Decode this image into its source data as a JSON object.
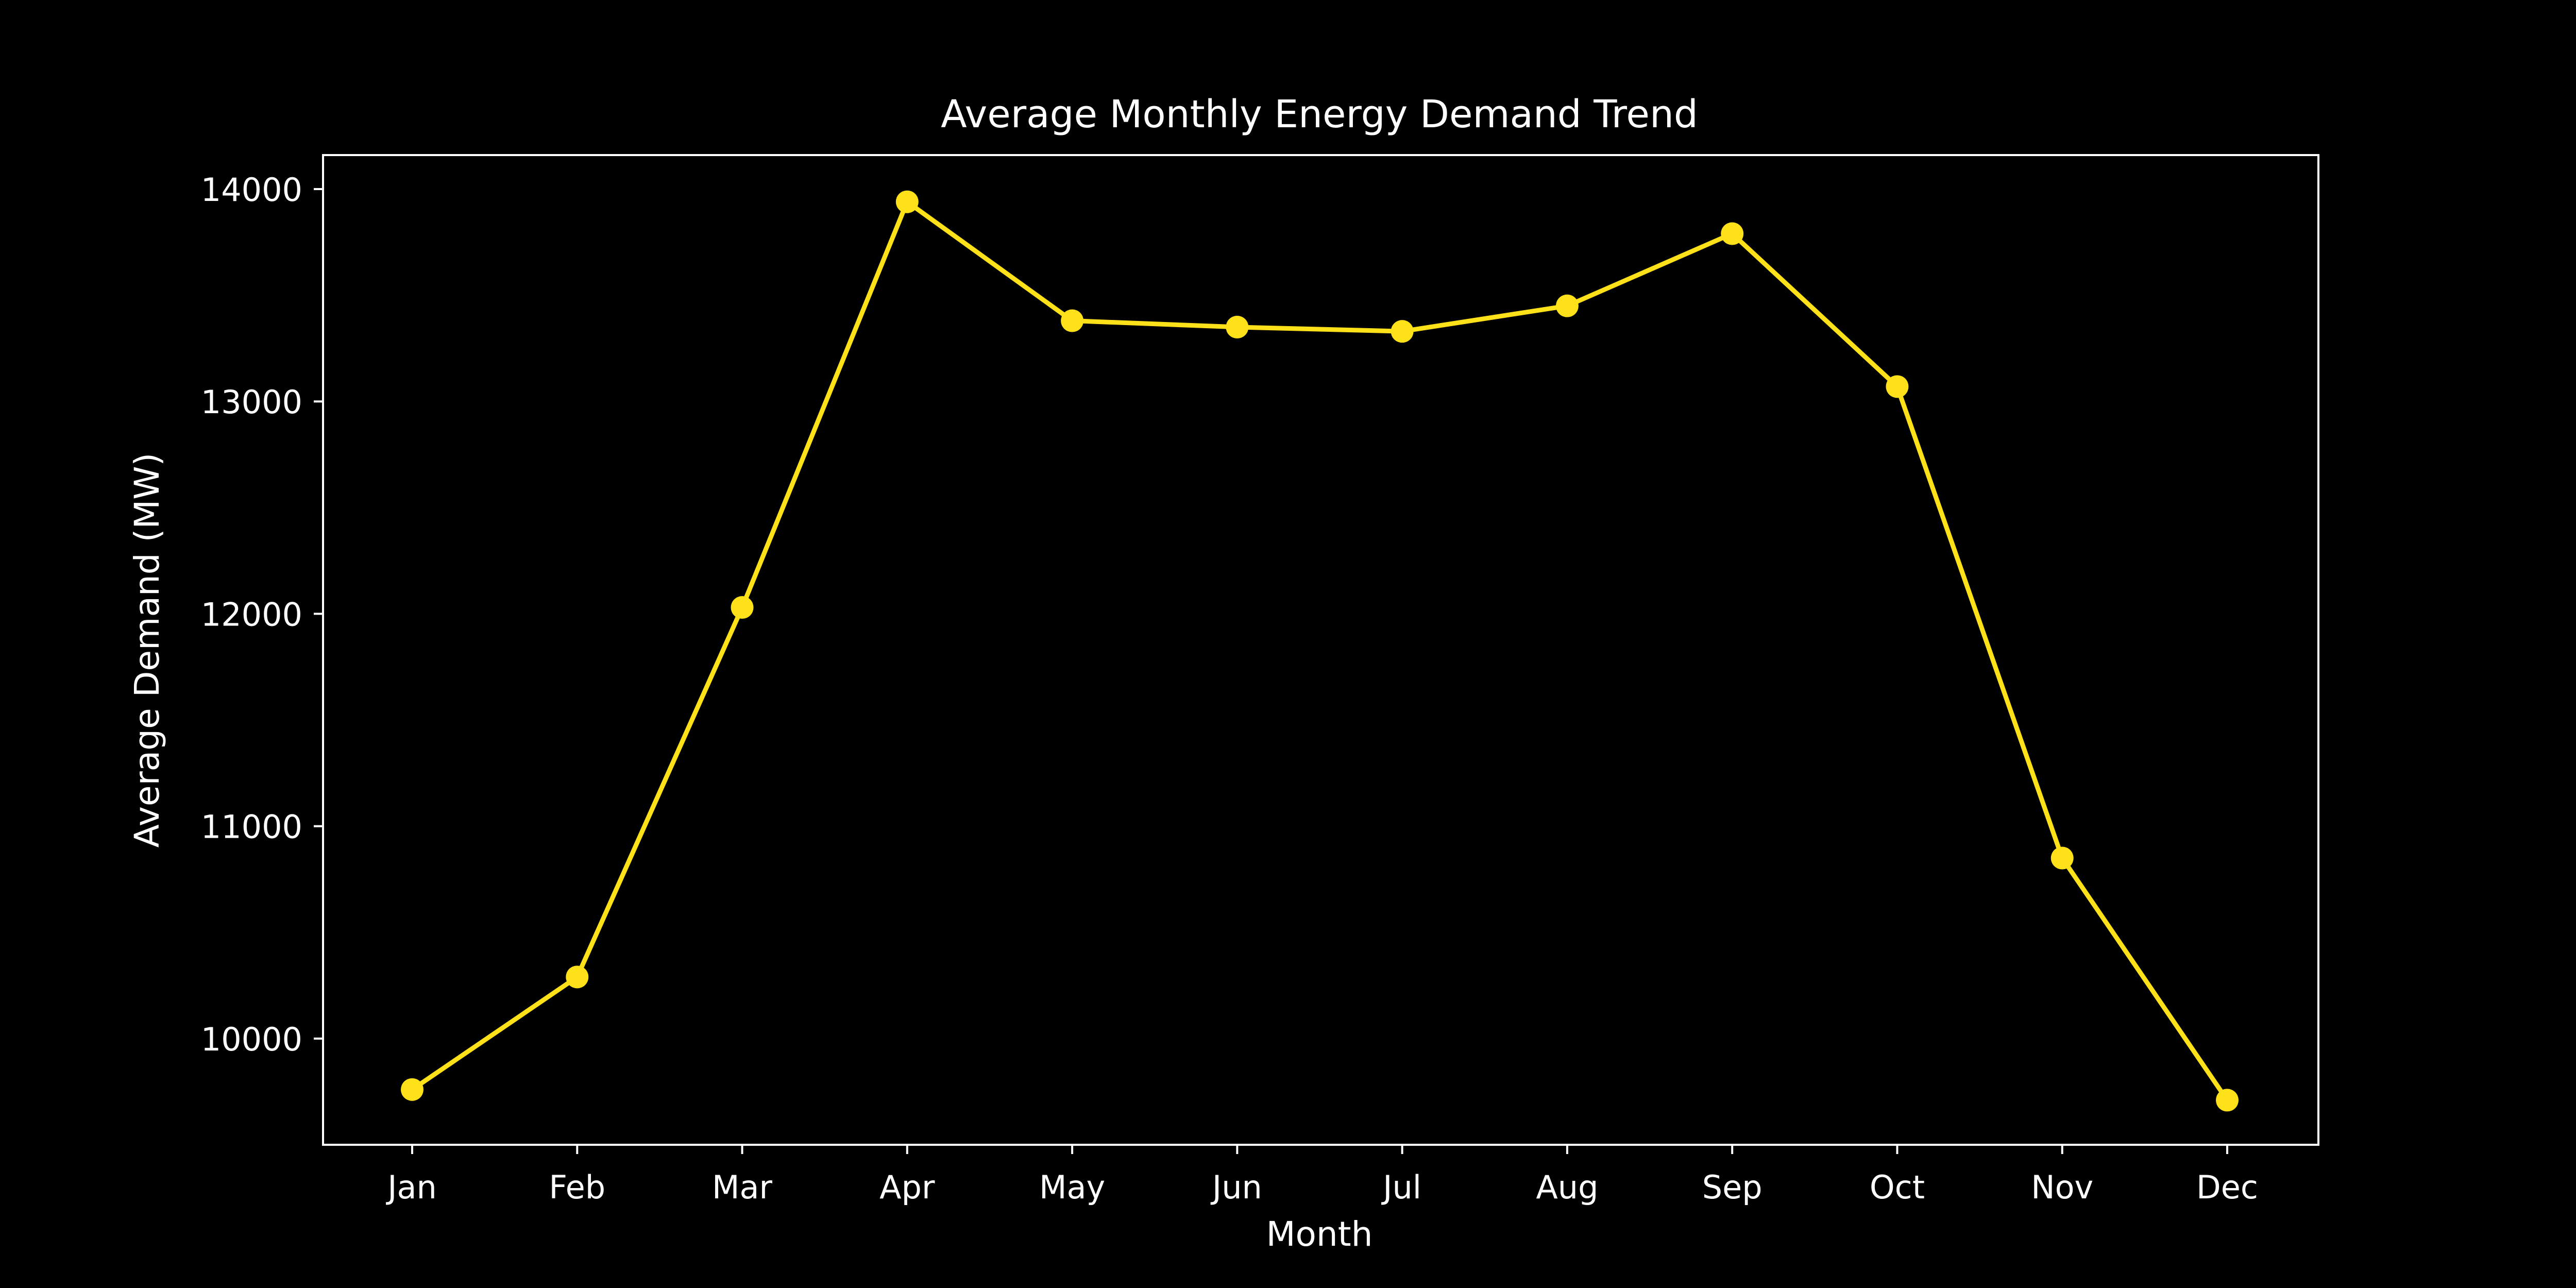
{
  "chart_data": {
    "type": "line",
    "title": "Average Monthly Energy Demand Trend",
    "xlabel": "Month",
    "ylabel": "Average Demand (MW)",
    "categories": [
      "Jan",
      "Feb",
      "Mar",
      "Apr",
      "May",
      "Jun",
      "Jul",
      "Aug",
      "Sep",
      "Oct",
      "Nov",
      "Dec"
    ],
    "series": [
      {
        "name": "Average Demand",
        "values": [
          9760,
          10290,
          12030,
          13940,
          13380,
          13350,
          13330,
          13450,
          13790,
          13070,
          10850,
          9710
        ]
      }
    ],
    "ylim": [
      9500,
      14160
    ],
    "yticks": [
      10000,
      11000,
      12000,
      13000,
      14000
    ],
    "yticklabels": [
      "10000",
      "11000",
      "12000",
      "13000",
      "14000"
    ],
    "grid": false,
    "line_color": "#ffe119",
    "background_color": "#000000",
    "axis_color": "#ffffff",
    "text_color": "#ffffff"
  }
}
